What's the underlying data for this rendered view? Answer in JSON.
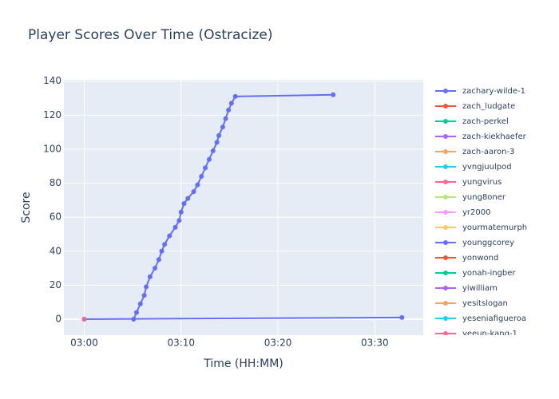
{
  "chart_data": {
    "type": "line",
    "title": "Player Scores Over Time (Ostracize)",
    "x_label": "Time (HH:MM)",
    "y_label": "Score",
    "xlim": [
      177.9,
      215.0
    ],
    "ylim": [
      -9.4,
      140.8
    ],
    "xticks": [
      {
        "value": 180,
        "label": "03:00"
      },
      {
        "value": 190,
        "label": "03:10"
      },
      {
        "value": 200,
        "label": "03:20"
      },
      {
        "value": 210,
        "label": "03:30"
      }
    ],
    "yticks": [
      0,
      20,
      40,
      60,
      80,
      100,
      120,
      140
    ],
    "grid": true,
    "series": [
      {
        "name": "zachary-wilde-1",
        "color": "#636efa",
        "x": [
          185.1,
          185.4,
          185.8,
          186.2,
          186.4,
          186.8,
          187.3,
          187.7,
          188.0,
          188.3,
          188.8,
          189.4,
          189.8,
          190.0,
          190.3,
          190.7,
          191.3,
          191.7,
          192.1,
          192.5,
          192.9,
          193.3,
          193.7,
          193.9,
          194.3,
          194.6,
          194.9,
          195.2,
          195.6,
          205.7
        ],
        "values": [
          0,
          4,
          9,
          14,
          19,
          25,
          30,
          35,
          40,
          44,
          49,
          54,
          58,
          63,
          68,
          71,
          75,
          79,
          84,
          89,
          94,
          99,
          104,
          108,
          113,
          118,
          123,
          127,
          131,
          132
        ]
      },
      {
        "name": "zach_ludgate",
        "color": "#EF553B",
        "x": [
          180
        ],
        "values": [
          0
        ]
      },
      {
        "name": "zach-perkel",
        "color": "#00cc96",
        "x": [
          180
        ],
        "values": [
          0
        ]
      },
      {
        "name": "zach-kiekhaefer",
        "color": "#ab63fa",
        "x": [
          180
        ],
        "values": [
          0
        ]
      },
      {
        "name": "zach-aaron-3",
        "color": "#FFA15A",
        "x": [
          180
        ],
        "values": [
          0
        ]
      },
      {
        "name": "yvngjuulpod",
        "color": "#19d3f3",
        "x": [
          180
        ],
        "values": [
          0
        ]
      },
      {
        "name": "yungvirus",
        "color": "#FF6692",
        "x": [
          180
        ],
        "values": [
          0
        ]
      },
      {
        "name": "yung8oner",
        "color": "#B6E880",
        "x": [
          180
        ],
        "values": [
          0
        ]
      },
      {
        "name": "yr2000",
        "color": "#FF97FF",
        "x": [
          180
        ],
        "values": [
          0
        ]
      },
      {
        "name": "yourmatemurph",
        "color": "#FECB52",
        "x": [
          180
        ],
        "values": [
          0
        ]
      },
      {
        "name": "younggcorey",
        "color": "#636efa",
        "x": [
          180,
          212.8
        ],
        "values": [
          0,
          1
        ]
      },
      {
        "name": "yonwond",
        "color": "#EF553B",
        "x": [
          180
        ],
        "values": [
          0
        ]
      },
      {
        "name": "yonah-ingber",
        "color": "#00cc96",
        "x": [
          180
        ],
        "values": [
          0
        ]
      },
      {
        "name": "yiwilliam",
        "color": "#ab63fa",
        "x": [
          180
        ],
        "values": [
          0
        ]
      },
      {
        "name": "yesitslogan",
        "color": "#FFA15A",
        "x": [
          180
        ],
        "values": [
          0
        ]
      },
      {
        "name": "yeseniafigueroa",
        "color": "#19d3f3",
        "x": [
          180
        ],
        "values": [
          0
        ]
      },
      {
        "name": "yeeun-kang-1",
        "color": "#FF6692",
        "x": [
          180
        ],
        "values": [
          0
        ]
      }
    ]
  }
}
